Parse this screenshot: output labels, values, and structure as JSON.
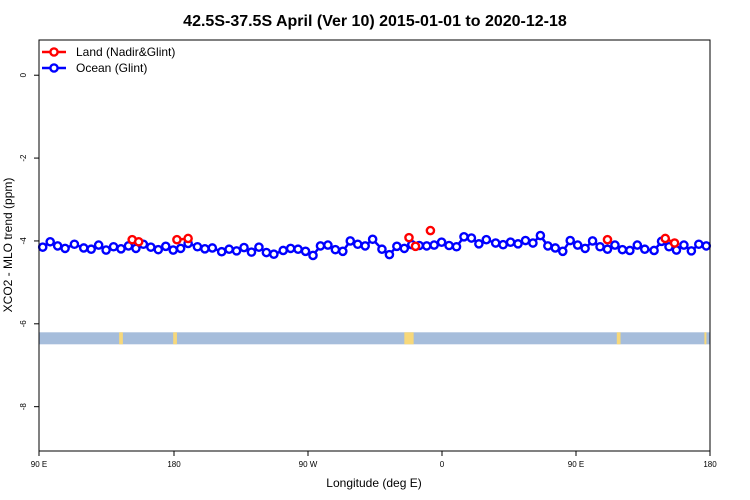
{
  "chart_data": {
    "type": "line",
    "title": "42.5S-37.5S April (Ver 10)   2015-01-01 to 2020-12-18",
    "xlabel": "Longitude (deg E)",
    "ylabel": "XCO2 - MLO trend (ppm)",
    "xlim": [
      90,
      450
    ],
    "ylim": [
      -9.07,
      0.85
    ],
    "x_ticks": [
      {
        "value": 90,
        "label": "90 E"
      },
      {
        "value": 180,
        "label": "180"
      },
      {
        "value": 270,
        "label": "90 W"
      },
      {
        "value": 360,
        "label": "0"
      },
      {
        "value": 450,
        "label": "90 E"
      },
      {
        "value": 540,
        "label": "180"
      }
    ],
    "y_ticks": [
      {
        "value": 0,
        "label": "0"
      },
      {
        "value": -2,
        "label": "-2"
      },
      {
        "value": -4,
        "label": "-4"
      },
      {
        "value": -6,
        "label": "-6"
      },
      {
        "value": -8,
        "label": "-8"
      }
    ],
    "legend": {
      "position": "top-left"
    },
    "series": [
      {
        "name": "Land (Nadir&Glint)",
        "color": "#ff0000",
        "segments": [
          [
            [
              140,
              -3.97
            ],
            [
              143.5,
              -4.02
            ]
          ],
          [
            [
              164,
              -3.97
            ],
            [
              170,
              -3.94
            ]
          ],
          [
            [
              288.5,
              -3.92
            ],
            [
              292,
              -4.13
            ]
          ],
          [
            [
              300,
              -3.75
            ]
          ],
          [
            [
              395,
              -3.97
            ]
          ],
          [
            [
              426,
              -3.94
            ],
            [
              431,
              -4.05
            ]
          ]
        ]
      },
      {
        "name": "Ocean (Glint)",
        "color": "#0000ff",
        "x": [
          92,
          96,
          100,
          104,
          109,
          114,
          118,
          122,
          126,
          130,
          134,
          138,
          142,
          146,
          150,
          154,
          158,
          162,
          166,
          170,
          175,
          179,
          183,
          188,
          192,
          196,
          200,
          204,
          208,
          212,
          216,
          221,
          225,
          229,
          233,
          237,
          241,
          245,
          249,
          253,
          257,
          261,
          265,
          269,
          274,
          278,
          282,
          286,
          290,
          294,
          298,
          302,
          306,
          310,
          314,
          318,
          322,
          326,
          330,
          335,
          339,
          343,
          347,
          351,
          355,
          359,
          363,
          367,
          371,
          375,
          379,
          383,
          387,
          391,
          395,
          399,
          403,
          407,
          411,
          415,
          420,
          424,
          428,
          432,
          436,
          440,
          444,
          448
        ],
        "y": [
          -4.15,
          -4.02,
          -4.12,
          -4.18,
          -4.08,
          -4.17,
          -4.2,
          -4.1,
          -4.22,
          -4.14,
          -4.19,
          -4.12,
          -4.18,
          -4.08,
          -4.15,
          -4.21,
          -4.13,
          -4.22,
          -4.18,
          -4.06,
          -4.14,
          -4.19,
          -4.17,
          -4.26,
          -4.2,
          -4.24,
          -4.16,
          -4.27,
          -4.15,
          -4.28,
          -4.32,
          -4.23,
          -4.18,
          -4.2,
          -4.25,
          -4.35,
          -4.12,
          -4.1,
          -4.21,
          -4.25,
          -4.0,
          -4.08,
          -4.12,
          -3.96,
          -4.2,
          -4.33,
          -4.13,
          -4.18,
          -4.09,
          -4.11,
          -4.12,
          -4.1,
          -4.03,
          -4.11,
          -4.14,
          -3.9,
          -3.93,
          -4.07,
          -3.97,
          -4.05,
          -4.09,
          -4.03,
          -4.07,
          -3.99,
          -4.05,
          -3.87,
          -4.12,
          -4.17,
          -4.25,
          -3.99,
          -4.1,
          -4.18,
          -4.0,
          -4.14,
          -4.2,
          -4.1,
          -4.21,
          -4.23,
          -4.1,
          -4.2,
          -4.23,
          -4.01,
          -4.14,
          -4.22,
          -4.1,
          -4.24,
          -4.08,
          -4.12
        ]
      }
    ],
    "land_mask": {
      "y": -6.35,
      "ocean_color": "#a6bddb",
      "land_color": "#f7d87a",
      "land_ranges": [
        [
          133,
          135
        ],
        [
          162,
          164
        ],
        [
          286,
          291
        ],
        [
          400,
          402
        ],
        [
          447,
          448
        ]
      ]
    }
  }
}
